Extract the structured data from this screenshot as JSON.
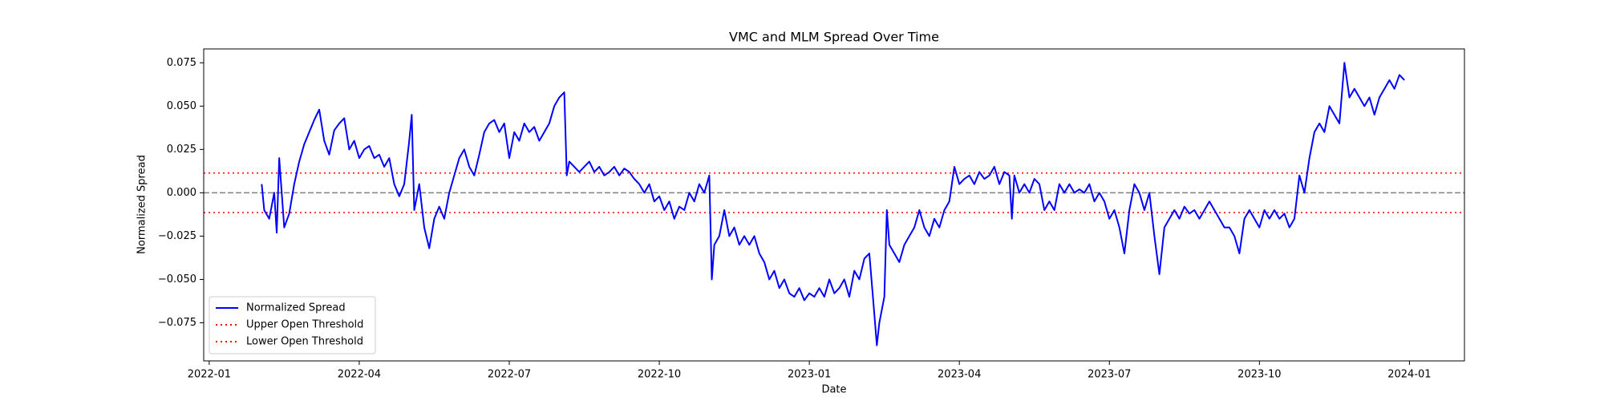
{
  "chart_data": {
    "type": "line",
    "title": "VMC and MLM Spread Over Time",
    "xlabel": "Date",
    "ylabel": "Normalized Spread",
    "x": [
      1.05,
      1.1,
      1.2,
      1.3,
      1.35,
      1.4,
      1.5,
      1.6,
      1.7,
      1.8,
      1.9,
      2.0,
      2.1,
      2.2,
      2.3,
      2.4,
      2.5,
      2.6,
      2.7,
      2.8,
      2.9,
      3.0,
      3.1,
      3.2,
      3.3,
      3.4,
      3.5,
      3.6,
      3.7,
      3.8,
      3.9,
      4.0,
      4.05,
      4.1,
      4.2,
      4.3,
      4.4,
      4.5,
      4.6,
      4.7,
      4.8,
      4.9,
      5.0,
      5.1,
      5.2,
      5.3,
      5.4,
      5.5,
      5.6,
      5.7,
      5.8,
      5.9,
      6.0,
      6.1,
      6.2,
      6.3,
      6.4,
      6.5,
      6.6,
      6.7,
      6.8,
      6.9,
      7.0,
      7.1,
      7.15,
      7.2,
      7.3,
      7.4,
      7.5,
      7.6,
      7.7,
      7.8,
      7.9,
      8.0,
      8.1,
      8.2,
      8.3,
      8.4,
      8.5,
      8.6,
      8.7,
      8.8,
      8.9,
      9.0,
      9.1,
      9.2,
      9.3,
      9.4,
      9.5,
      9.6,
      9.7,
      9.8,
      9.9,
      10.0,
      10.05,
      10.1,
      10.2,
      10.3,
      10.4,
      10.5,
      10.6,
      10.7,
      10.8,
      10.9,
      11.0,
      11.1,
      11.2,
      11.3,
      11.4,
      11.5,
      11.6,
      11.7,
      11.8,
      11.9,
      12.0,
      12.1,
      12.2,
      12.3,
      12.4,
      12.5,
      12.6,
      12.7,
      12.8,
      12.9,
      13.0,
      13.1,
      13.2,
      13.3,
      13.35,
      13.4,
      13.5,
      13.55,
      13.6,
      13.7,
      13.8,
      13.9,
      14.0,
      14.1,
      14.2,
      14.3,
      14.4,
      14.5,
      14.6,
      14.7,
      14.8,
      14.9,
      15.0,
      15.1,
      15.2,
      15.3,
      15.4,
      15.5,
      15.6,
      15.7,
      15.8,
      15.9,
      16.0,
      16.05,
      16.1,
      16.2,
      16.3,
      16.4,
      16.5,
      16.6,
      16.7,
      16.8,
      16.9,
      17.0,
      17.1,
      17.2,
      17.3,
      17.4,
      17.5,
      17.6,
      17.7,
      17.8,
      17.9,
      18.0,
      18.1,
      18.2,
      18.3,
      18.4,
      18.5,
      18.6,
      18.7,
      18.8,
      18.9,
      19.0,
      19.1,
      19.2,
      19.3,
      19.4,
      19.5,
      19.6,
      19.7,
      19.8,
      19.9,
      20.0,
      20.1,
      20.2,
      20.3,
      20.4,
      20.5,
      20.6,
      20.7,
      20.8,
      20.9,
      21.0,
      21.1,
      21.2,
      21.3,
      21.4,
      21.5,
      21.6,
      21.7,
      21.8,
      21.9,
      22.0,
      22.1,
      22.2,
      22.3,
      22.4,
      22.5,
      22.6,
      22.7,
      22.8,
      22.9,
      23.0,
      23.1,
      23.2,
      23.3,
      23.4,
      23.5,
      23.6,
      23.7,
      23.8,
      23.9
    ],
    "series": [
      {
        "name": "Normalized Spread",
        "color": "#0000ff",
        "values": [
          0.005,
          -0.01,
          -0.015,
          0.0,
          -0.023,
          0.02,
          -0.02,
          -0.012,
          0.005,
          0.018,
          0.028,
          0.035,
          0.042,
          0.048,
          0.03,
          0.022,
          0.036,
          0.04,
          0.043,
          0.025,
          0.03,
          0.02,
          0.025,
          0.027,
          0.02,
          0.022,
          0.015,
          0.02,
          0.005,
          -0.002,
          0.005,
          0.03,
          0.045,
          -0.01,
          0.005,
          -0.02,
          -0.032,
          -0.015,
          -0.008,
          -0.015,
          0.0,
          0.01,
          0.02,
          0.025,
          0.015,
          0.01,
          0.022,
          0.035,
          0.04,
          0.042,
          0.035,
          0.04,
          0.02,
          0.035,
          0.03,
          0.04,
          0.035,
          0.038,
          0.03,
          0.035,
          0.04,
          0.05,
          0.055,
          0.058,
          0.01,
          0.018,
          0.015,
          0.012,
          0.015,
          0.018,
          0.012,
          0.015,
          0.01,
          0.012,
          0.015,
          0.01,
          0.014,
          0.012,
          0.008,
          0.005,
          0.0,
          0.005,
          -0.005,
          -0.002,
          -0.01,
          -0.005,
          -0.015,
          -0.008,
          -0.01,
          0.0,
          -0.005,
          0.005,
          0.0,
          0.01,
          -0.05,
          -0.03,
          -0.025,
          -0.01,
          -0.025,
          -0.02,
          -0.03,
          -0.025,
          -0.03,
          -0.025,
          -0.035,
          -0.04,
          -0.05,
          -0.045,
          -0.055,
          -0.05,
          -0.058,
          -0.06,
          -0.055,
          -0.062,
          -0.058,
          -0.06,
          -0.055,
          -0.06,
          -0.05,
          -0.058,
          -0.055,
          -0.05,
          -0.06,
          -0.045,
          -0.05,
          -0.038,
          -0.035,
          -0.07,
          -0.088,
          -0.075,
          -0.06,
          -0.01,
          -0.03,
          -0.035,
          -0.04,
          -0.03,
          -0.025,
          -0.02,
          -0.01,
          -0.02,
          -0.025,
          -0.015,
          -0.02,
          -0.01,
          -0.005,
          0.015,
          0.005,
          0.008,
          0.01,
          0.005,
          0.012,
          0.008,
          0.01,
          0.015,
          0.005,
          0.012,
          0.01,
          -0.015,
          0.01,
          0.0,
          0.005,
          0.0,
          0.008,
          0.005,
          -0.01,
          -0.005,
          -0.01,
          0.005,
          0.0,
          0.005,
          0.0,
          0.002,
          0.0,
          0.005,
          -0.005,
          0.0,
          -0.005,
          -0.015,
          -0.01,
          -0.02,
          -0.035,
          -0.01,
          0.005,
          0.0,
          -0.01,
          0.0,
          -0.025,
          -0.047,
          -0.02,
          -0.015,
          -0.01,
          -0.015,
          -0.008,
          -0.012,
          -0.01,
          -0.015,
          -0.01,
          -0.005,
          -0.01,
          -0.015,
          -0.02,
          -0.02,
          -0.025,
          -0.035,
          -0.015,
          -0.01,
          -0.015,
          -0.02,
          -0.01,
          -0.015,
          -0.01,
          -0.015,
          -0.012,
          -0.02,
          -0.015,
          0.01,
          0.0,
          0.02,
          0.035,
          0.04,
          0.035,
          0.05,
          0.045,
          0.04,
          0.075,
          0.055,
          0.06,
          0.055,
          0.05,
          0.055,
          0.045,
          0.055,
          0.06,
          0.065,
          0.06,
          0.068,
          0.065
        ]
      }
    ],
    "hlines": [
      {
        "value": 0,
        "color": "#808080",
        "style": "dashed"
      },
      {
        "name": "Upper Open Threshold",
        "value": 0.0114,
        "color": "#ff0000",
        "style": "dotted"
      },
      {
        "name": "Lower Open Threshold",
        "value": -0.0114,
        "color": "#ff0000",
        "style": "dotted"
      }
    ],
    "xlim": [
      -0.11,
      25.1
    ],
    "xticks": [
      {
        "value": 0,
        "label": "2022-01"
      },
      {
        "value": 3,
        "label": "2022-04"
      },
      {
        "value": 6,
        "label": "2022-07"
      },
      {
        "value": 9,
        "label": "2022-10"
      },
      {
        "value": 12,
        "label": "2023-01"
      },
      {
        "value": 15,
        "label": "2023-04"
      },
      {
        "value": 18,
        "label": "2023-07"
      },
      {
        "value": 21,
        "label": "2023-10"
      },
      {
        "value": 24,
        "label": "2024-01"
      }
    ],
    "ylim": [
      -0.097,
      0.083
    ],
    "yticks": [
      {
        "value": -0.075,
        "label": "−0.075"
      },
      {
        "value": -0.05,
        "label": "−0.050"
      },
      {
        "value": -0.025,
        "label": "−0.025"
      },
      {
        "value": 0,
        "label": "0.000"
      },
      {
        "value": 0.025,
        "label": "0.025"
      },
      {
        "value": 0.05,
        "label": "0.050"
      },
      {
        "value": 0.075,
        "label": "0.075"
      }
    ],
    "legend": "lower left"
  }
}
